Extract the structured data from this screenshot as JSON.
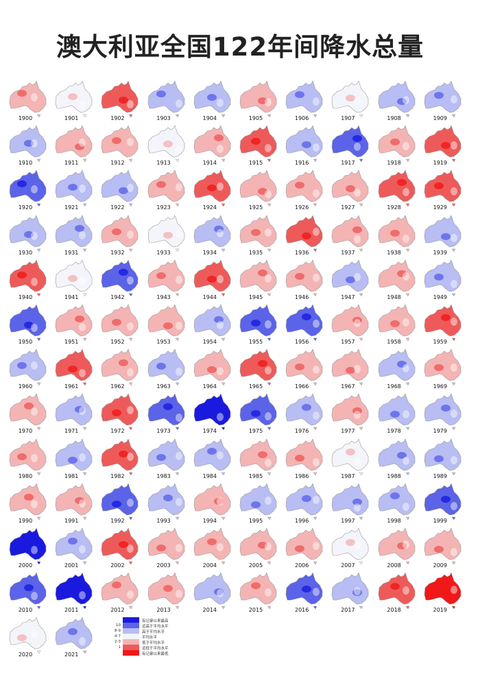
{
  "title": "澳大利亚全国122年间降水总量",
  "colors": {
    "-3": "#1a1adf",
    "-2": "#5b63e8",
    "-1": "#b8bdf3",
    "0": "#f4f4fb",
    "1": "#f4b4b4",
    "2": "#ee5a5a",
    "3": "#f01818"
  },
  "maps": [
    {
      "year": "1900",
      "tone": 1
    },
    {
      "year": "1901",
      "tone": 0
    },
    {
      "year": "1902",
      "tone": 2
    },
    {
      "year": "1903",
      "tone": -1
    },
    {
      "year": "1904",
      "tone": -1
    },
    {
      "year": "1905",
      "tone": 1
    },
    {
      "year": "1906",
      "tone": -1
    },
    {
      "year": "1907",
      "tone": 0
    },
    {
      "year": "1908",
      "tone": -1
    },
    {
      "year": "1909",
      "tone": -1
    },
    {
      "year": "1910",
      "tone": -1
    },
    {
      "year": "1911",
      "tone": 1
    },
    {
      "year": "1912",
      "tone": 1
    },
    {
      "year": "1913",
      "tone": 0
    },
    {
      "year": "1914",
      "tone": 1
    },
    {
      "year": "1915",
      "tone": 2
    },
    {
      "year": "1916",
      "tone": -1
    },
    {
      "year": "1917",
      "tone": -2
    },
    {
      "year": "1918",
      "tone": 1
    },
    {
      "year": "1919",
      "tone": 2
    },
    {
      "year": "1920",
      "tone": -2
    },
    {
      "year": "1921",
      "tone": -1
    },
    {
      "year": "1922",
      "tone": -1
    },
    {
      "year": "1923",
      "tone": 1
    },
    {
      "year": "1924",
      "tone": 2
    },
    {
      "year": "1925",
      "tone": 1
    },
    {
      "year": "1926",
      "tone": 1
    },
    {
      "year": "1927",
      "tone": 1
    },
    {
      "year": "1928",
      "tone": 2
    },
    {
      "year": "1929",
      "tone": 2
    },
    {
      "year": "1930",
      "tone": -1
    },
    {
      "year": "1931",
      "tone": -1
    },
    {
      "year": "1932",
      "tone": 1
    },
    {
      "year": "1933",
      "tone": 0
    },
    {
      "year": "1934",
      "tone": -1
    },
    {
      "year": "1935",
      "tone": 1
    },
    {
      "year": "1936",
      "tone": 2
    },
    {
      "year": "1937",
      "tone": 1
    },
    {
      "year": "1938",
      "tone": 1
    },
    {
      "year": "1939",
      "tone": -1
    },
    {
      "year": "1940",
      "tone": 2
    },
    {
      "year": "1941",
      "tone": 0
    },
    {
      "year": "1942",
      "tone": -2
    },
    {
      "year": "1943",
      "tone": 1
    },
    {
      "year": "1944",
      "tone": 2
    },
    {
      "year": "1945",
      "tone": 1
    },
    {
      "year": "1946",
      "tone": 1
    },
    {
      "year": "1947",
      "tone": -1
    },
    {
      "year": "1948",
      "tone": 1
    },
    {
      "year": "1949",
      "tone": -1
    },
    {
      "year": "1950",
      "tone": -2
    },
    {
      "year": "1951",
      "tone": 1
    },
    {
      "year": "1952",
      "tone": 1
    },
    {
      "year": "1953",
      "tone": 1
    },
    {
      "year": "1954",
      "tone": -1
    },
    {
      "year": "1955",
      "tone": -2
    },
    {
      "year": "1956",
      "tone": -2
    },
    {
      "year": "1957",
      "tone": 1
    },
    {
      "year": "1958",
      "tone": 1
    },
    {
      "year": "1959",
      "tone": 2
    },
    {
      "year": "1960",
      "tone": -1
    },
    {
      "year": "1961",
      "tone": 2
    },
    {
      "year": "1962",
      "tone": 1
    },
    {
      "year": "1963",
      "tone": -1
    },
    {
      "year": "1964",
      "tone": 1
    },
    {
      "year": "1965",
      "tone": 2
    },
    {
      "year": "1966",
      "tone": 1
    },
    {
      "year": "1967",
      "tone": 1
    },
    {
      "year": "1968",
      "tone": -1
    },
    {
      "year": "1969",
      "tone": 1
    },
    {
      "year": "1970",
      "tone": 1
    },
    {
      "year": "1971",
      "tone": -1
    },
    {
      "year": "1972",
      "tone": 2
    },
    {
      "year": "1973",
      "tone": -2
    },
    {
      "year": "1974",
      "tone": -3
    },
    {
      "year": "1975",
      "tone": -2
    },
    {
      "year": "1976",
      "tone": -1
    },
    {
      "year": "1977",
      "tone": 1
    },
    {
      "year": "1978",
      "tone": -1
    },
    {
      "year": "1979",
      "tone": -1
    },
    {
      "year": "1980",
      "tone": 1
    },
    {
      "year": "1981",
      "tone": -1
    },
    {
      "year": "1982",
      "tone": 2
    },
    {
      "year": "1983",
      "tone": -1
    },
    {
      "year": "1984",
      "tone": -1
    },
    {
      "year": "1985",
      "tone": 1
    },
    {
      "year": "1986",
      "tone": 1
    },
    {
      "year": "1987",
      "tone": 0
    },
    {
      "year": "1988",
      "tone": -1
    },
    {
      "year": "1989",
      "tone": -1
    },
    {
      "year": "1990",
      "tone": 1
    },
    {
      "year": "1991",
      "tone": 1
    },
    {
      "year": "1992",
      "tone": -2
    },
    {
      "year": "1993",
      "tone": -1
    },
    {
      "year": "1994",
      "tone": 1
    },
    {
      "year": "1995",
      "tone": -1
    },
    {
      "year": "1996",
      "tone": -1
    },
    {
      "year": "1997",
      "tone": -1
    },
    {
      "year": "1998",
      "tone": -1
    },
    {
      "year": "1999",
      "tone": -2
    },
    {
      "year": "2000",
      "tone": -3
    },
    {
      "year": "2001",
      "tone": -1
    },
    {
      "year": "2002",
      "tone": 2
    },
    {
      "year": "2003",
      "tone": 1
    },
    {
      "year": "2004",
      "tone": 1
    },
    {
      "year": "2005",
      "tone": 1
    },
    {
      "year": "2006",
      "tone": 1
    },
    {
      "year": "2007",
      "tone": 0
    },
    {
      "year": "2008",
      "tone": 1
    },
    {
      "year": "2009",
      "tone": 1
    },
    {
      "year": "2010",
      "tone": -2
    },
    {
      "year": "2011",
      "tone": -3
    },
    {
      "year": "2012",
      "tone": 1
    },
    {
      "year": "2013",
      "tone": 1
    },
    {
      "year": "2014",
      "tone": -1
    },
    {
      "year": "2015",
      "tone": 1
    },
    {
      "year": "2016",
      "tone": -2
    },
    {
      "year": "2017",
      "tone": -1
    },
    {
      "year": "2018",
      "tone": 2
    },
    {
      "year": "2019",
      "tone": 3
    },
    {
      "year": "2020",
      "tone": 0
    },
    {
      "year": "2021",
      "tone": -1
    }
  ],
  "legend": [
    {
      "num": "",
      "label": "有记录以来最高",
      "tone": -3
    },
    {
      "num": "10",
      "label": "远高于平均水平",
      "tone": -2
    },
    {
      "num": "8-9",
      "label": "高于平均水平",
      "tone": -1
    },
    {
      "num": "4-7",
      "label": "平均水平",
      "tone": 0
    },
    {
      "num": "2-3",
      "label": "低于平均水平",
      "tone": 1
    },
    {
      "num": "1",
      "label": "远低于平均水平",
      "tone": 2
    },
    {
      "num": "",
      "label": "有记录以来最低",
      "tone": 3
    }
  ]
}
